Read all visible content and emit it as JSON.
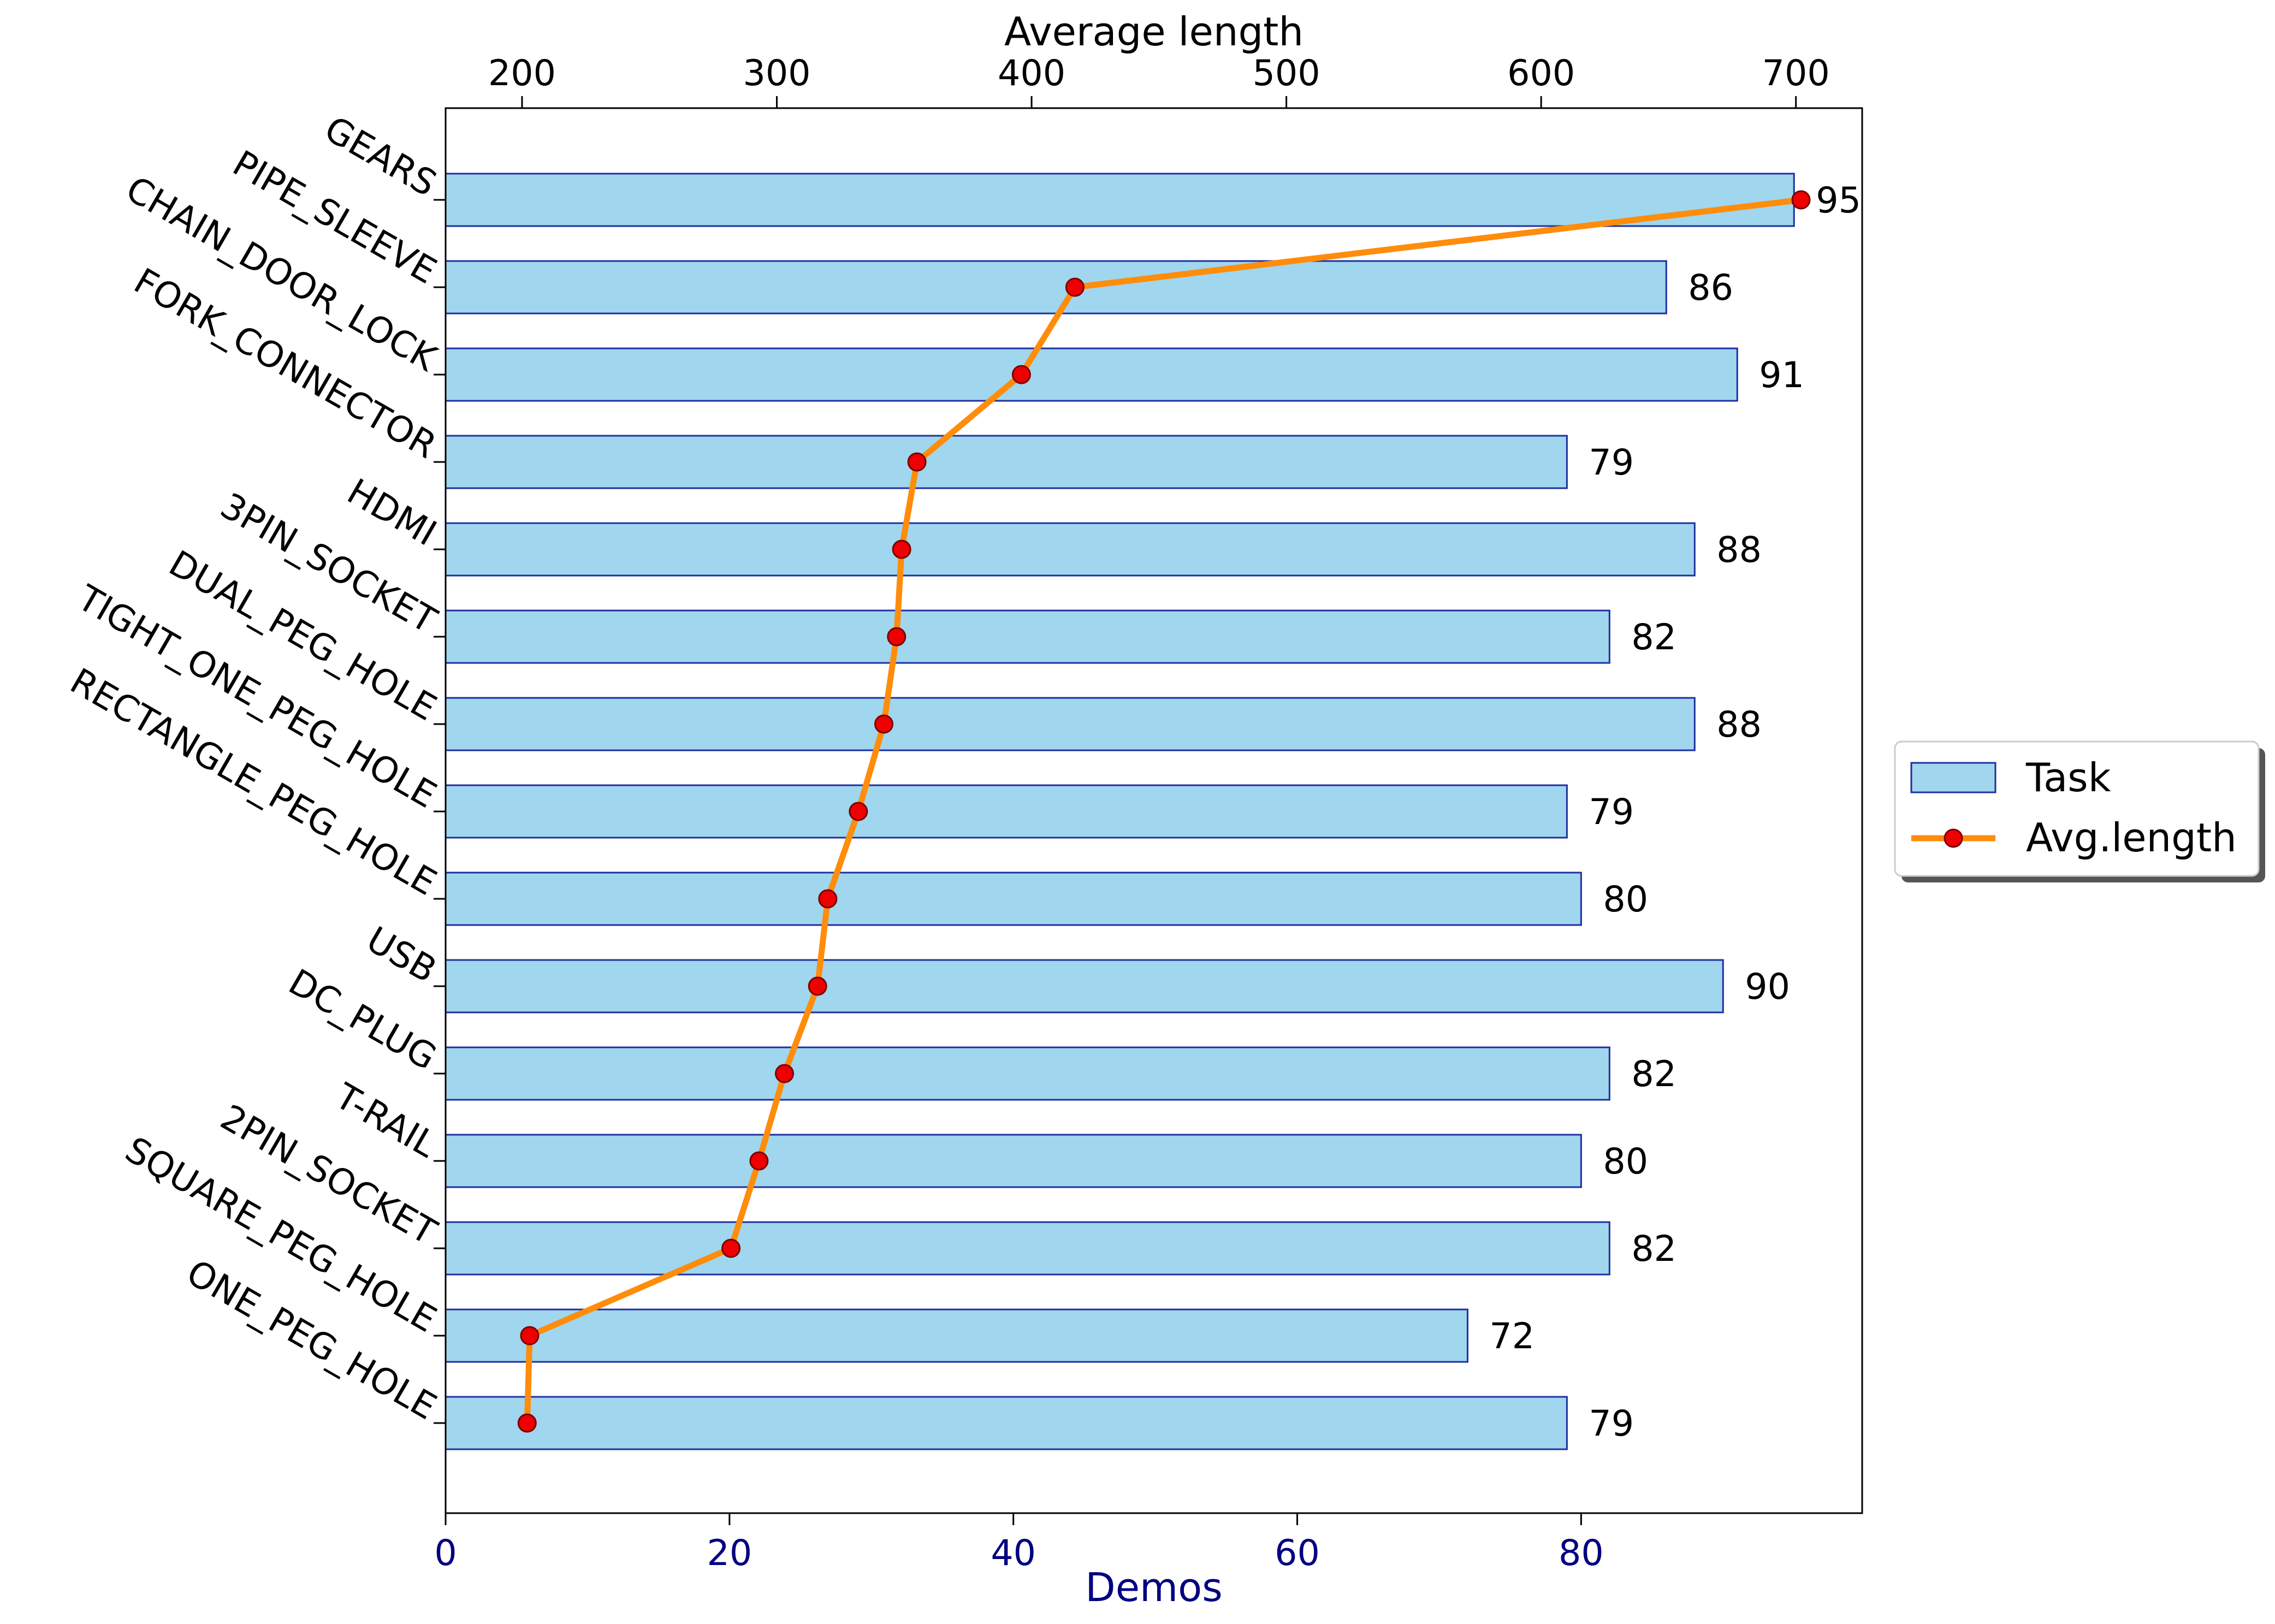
{
  "chart_data": {
    "type": "bar",
    "orientation": "horizontal",
    "categories": [
      "GEARS",
      "PIPE_SLEEVE",
      "CHAIN_DOOR_LOCK",
      "FORK_CONNECTOR",
      "HDMI",
      "3PIN_SOCKET",
      "DUAL_PEG_HOLE",
      "TIGHT_ONE_PEG_HOLE",
      "RECTANGLE_PEG_HOLE",
      "USB",
      "DC_PLUG",
      "T-RAIL",
      "2PIN_SOCKET",
      "SQUARE_PEG_HOLE",
      "ONE_PEG_HOLE"
    ],
    "series": [
      {
        "name": "Task",
        "type": "bar",
        "axis": "bottom",
        "color": "#a0d6ee",
        "edge_color": "#1f2fa0",
        "values": [
          95,
          86,
          91,
          79,
          88,
          82,
          88,
          79,
          80,
          90,
          82,
          80,
          82,
          72,
          79
        ]
      },
      {
        "name": "Avg.length",
        "type": "line",
        "axis": "top",
        "color": "#ff8c0a",
        "marker_color": "#ee0000",
        "values": [
          702,
          417,
          396,
          355,
          349,
          347,
          342,
          332,
          320,
          316,
          303,
          293,
          282,
          203,
          202
        ]
      }
    ],
    "xlabel": "Demos",
    "x2label": "Average length",
    "xlim": [
      0,
      99.8
    ],
    "x2lim": [
      170,
      726
    ],
    "xticks": [
      0,
      20,
      40,
      60,
      80
    ],
    "x2ticks": [
      200,
      300,
      400,
      500,
      600,
      700
    ],
    "bottom_axis_color": "#000080",
    "grid": false,
    "legend": {
      "position": "right",
      "entries": [
        "Task",
        "Avg.length"
      ]
    }
  }
}
